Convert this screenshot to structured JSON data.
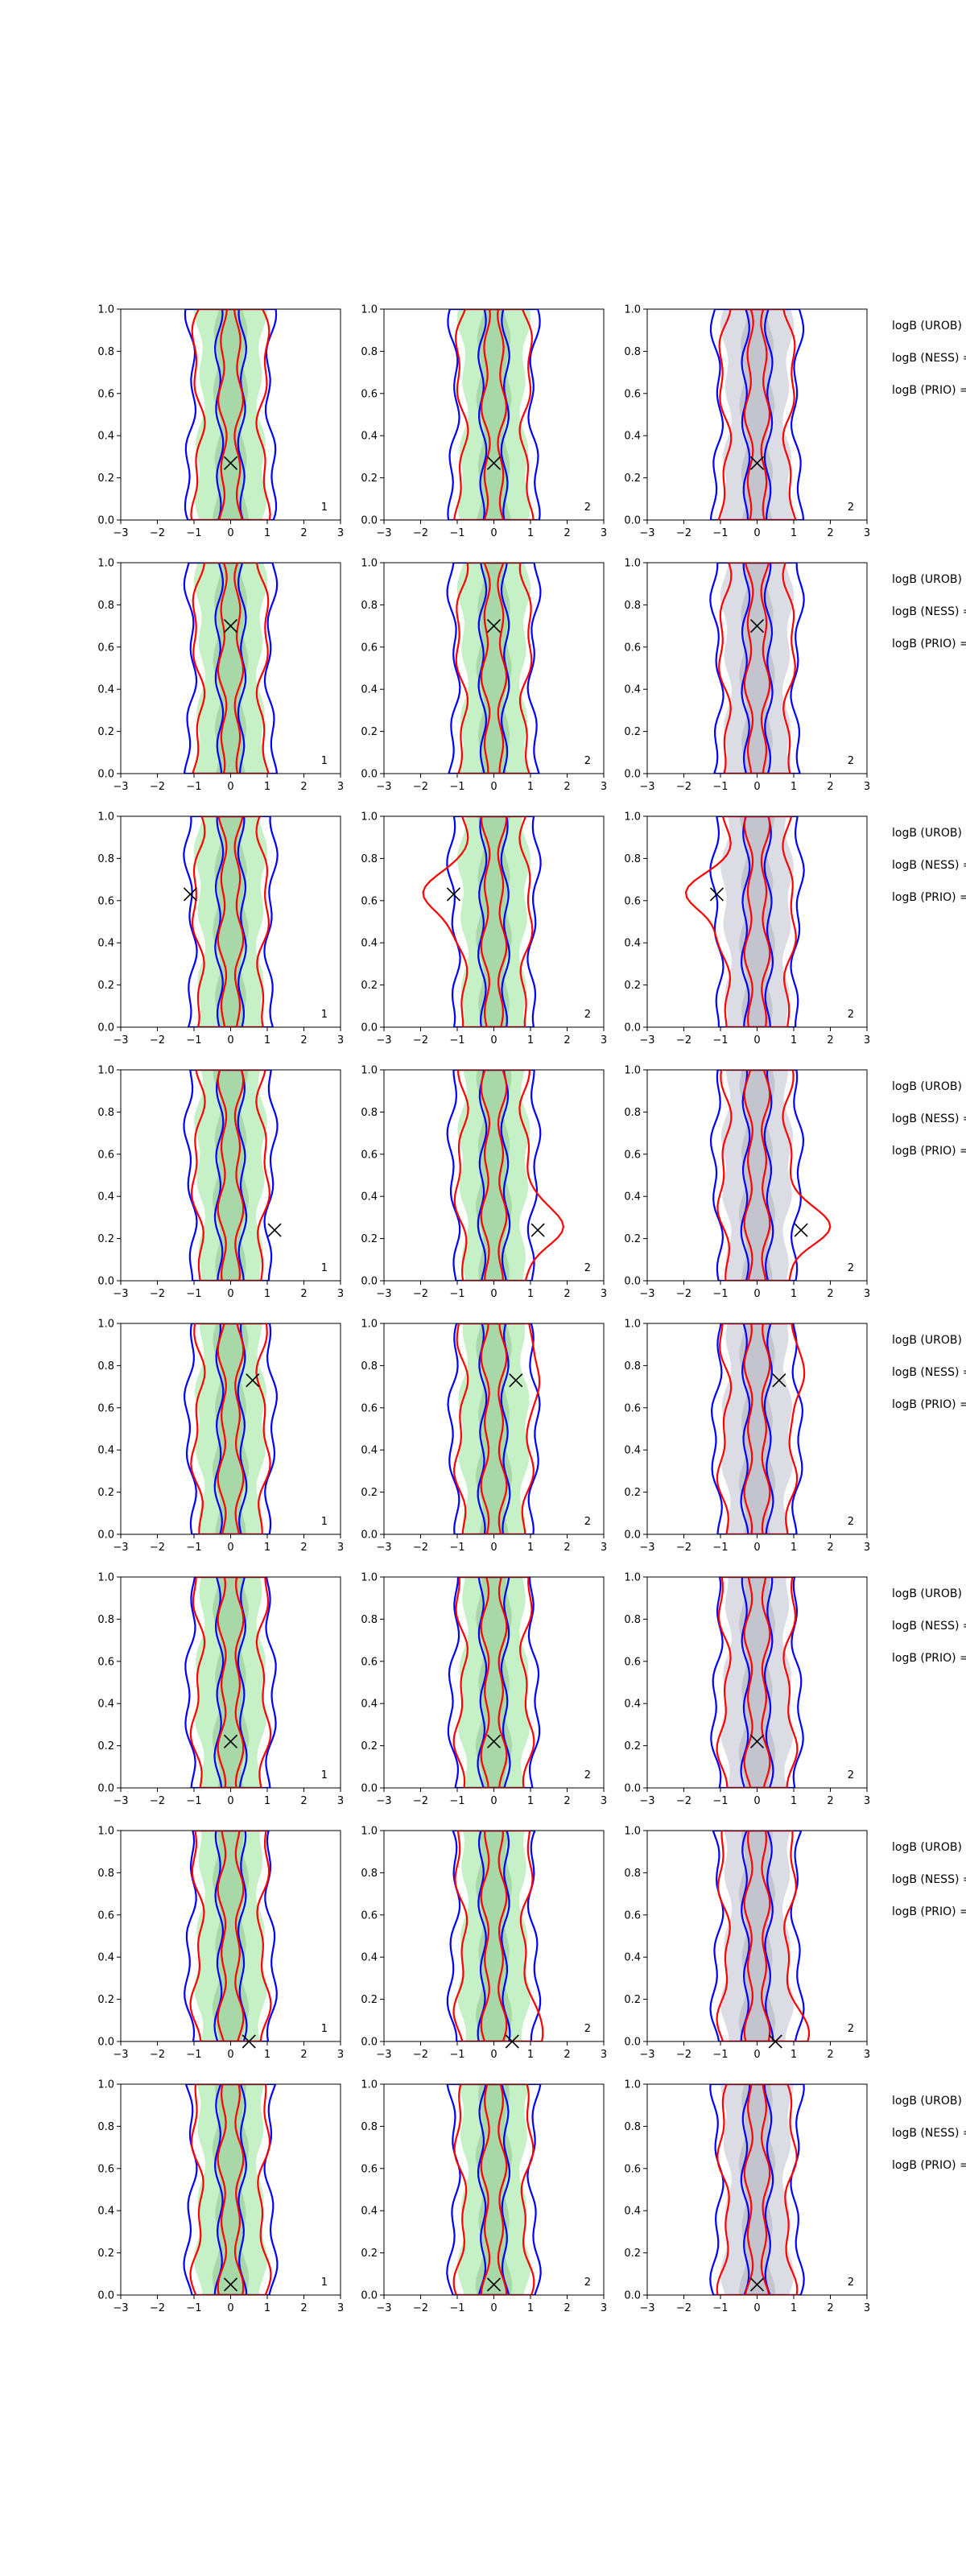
{
  "chart_data": {
    "type": "contour-grid",
    "rows": 8,
    "columns": 3,
    "xlim": [
      -3,
      3
    ],
    "ylim": [
      0,
      1
    ],
    "xticks": [
      "−3",
      "−2",
      "−1",
      "0",
      "1",
      "2",
      "3"
    ],
    "yticks": [
      "0.0",
      "0.2",
      "0.4",
      "0.6",
      "0.8",
      "1.0"
    ],
    "column_panel_numbers": [
      "1",
      "2",
      "2"
    ],
    "row_side_labels": [
      "logB (UROB) =",
      "logB (NESS) =",
      "logB (PRIO) ="
    ],
    "column_fill_colors": [
      "#9ee6a0",
      "#9ee6a0",
      "#c8c8d2"
    ],
    "series_colors": {
      "outer_contour": "#0000ff",
      "inner_contour": "#ff0000",
      "fill_outer": "#b9ecb9",
      "fill_inner": "#9ccf9c"
    },
    "markers_x_y": [
      {
        "x": 0.0,
        "y": 0.27
      },
      {
        "x": 0.0,
        "y": 0.7
      },
      {
        "x": -1.1,
        "y": 0.63
      },
      {
        "x": 1.2,
        "y": 0.24
      },
      {
        "x": 0.6,
        "y": 0.73
      },
      {
        "x": 0.0,
        "y": 0.22
      },
      {
        "x": 0.5,
        "y": 0.0
      },
      {
        "x": 0.0,
        "y": 0.05
      }
    ]
  }
}
